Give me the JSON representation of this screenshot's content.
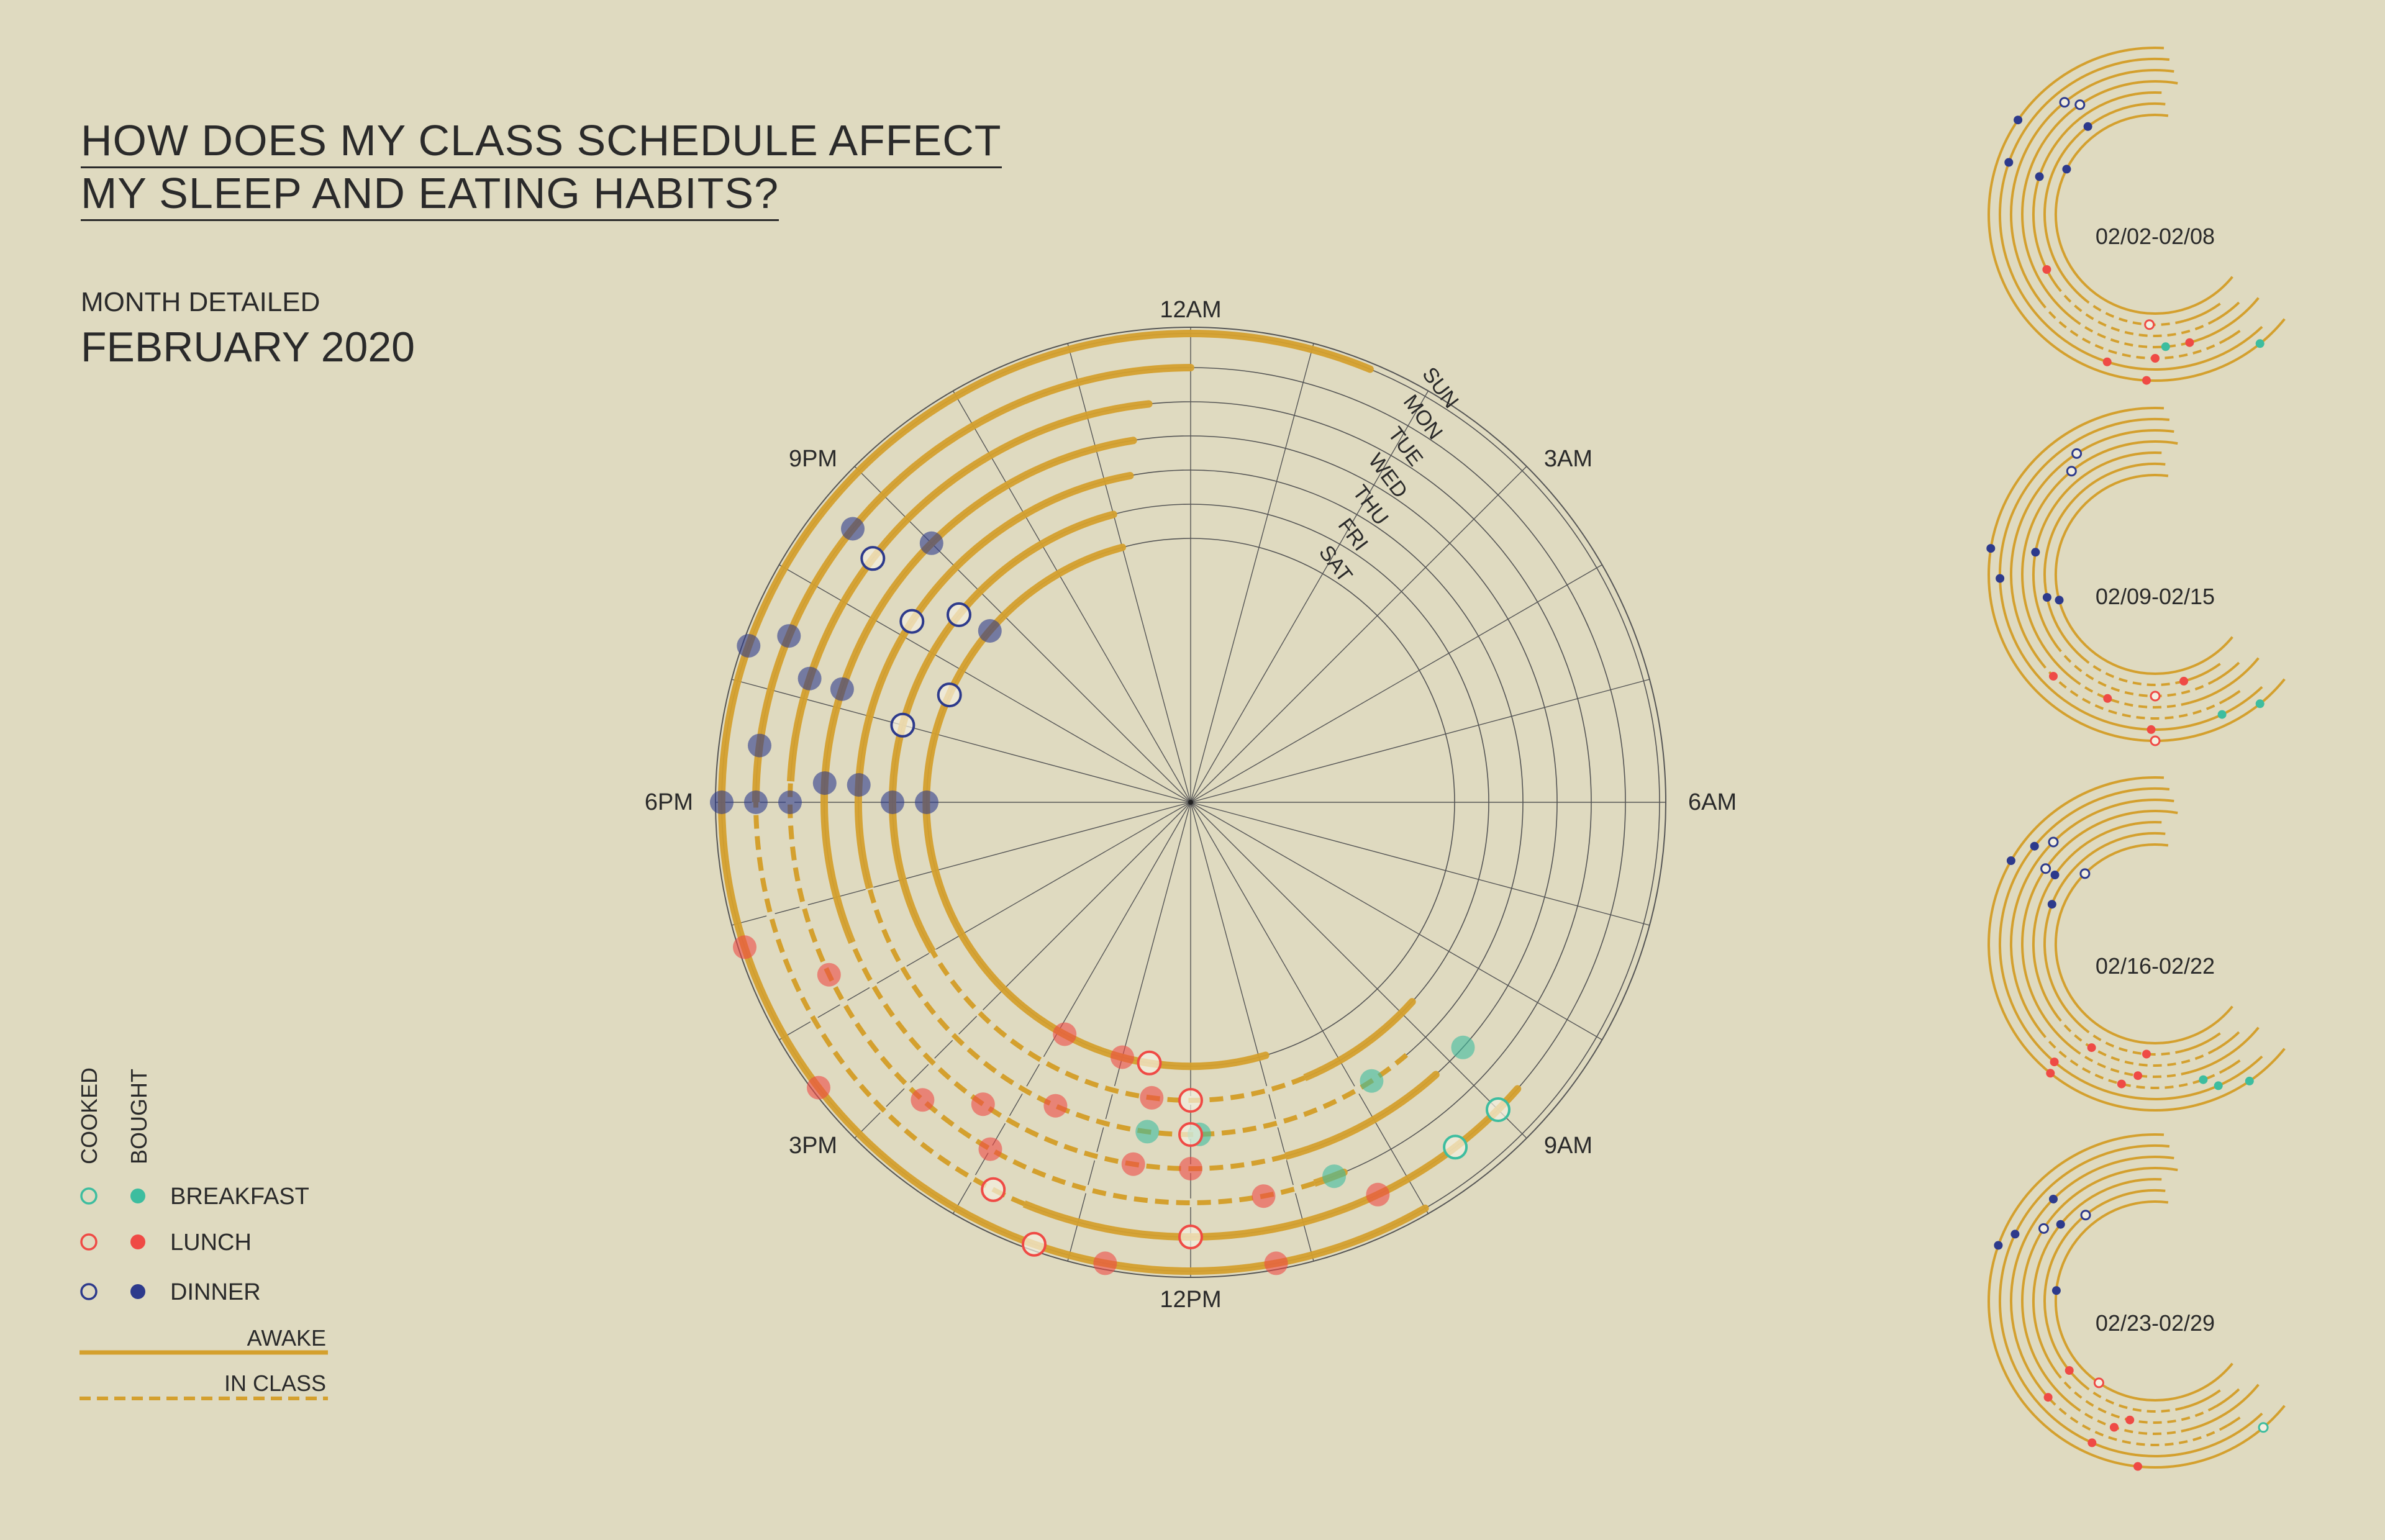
{
  "title": {
    "line1": "HOW DOES MY CLASS SCHEDULE AFFECT",
    "line2": "MY SLEEP AND EATING HABITS?"
  },
  "month": {
    "label": "MONTH DETAILED",
    "value": "FEBRUARY 2020"
  },
  "colors": {
    "background": "#dfdac0",
    "ring": "#d4a02e",
    "grid": "#3a3a3a",
    "breakfast": "#3dbd9f",
    "lunch": "#ef4a45",
    "dinner": "#2d3a8c"
  },
  "legend": {
    "cooked": "COOKED",
    "bought": "BOUGHT",
    "breakfast": "BREAKFAST",
    "lunch": "LUNCH",
    "dinner": "DINNER",
    "awake": "AWAKE",
    "in_class": "IN CLASS"
  },
  "chart_data": {
    "type": "radial",
    "hour_labels": [
      {
        "hour": 0,
        "label": "12AM"
      },
      {
        "hour": 3,
        "label": "3AM"
      },
      {
        "hour": 6,
        "label": "6AM"
      },
      {
        "hour": 9,
        "label": "9AM"
      },
      {
        "hour": 12,
        "label": "12PM"
      },
      {
        "hour": 15,
        "label": "3PM"
      },
      {
        "hour": 18,
        "label": "6PM"
      },
      {
        "hour": 21,
        "label": "9PM"
      }
    ],
    "days": [
      "SUN",
      "MON",
      "TUE",
      "WED",
      "THU",
      "FRI",
      "SAT"
    ],
    "main_week": {
      "awake": [
        {
          "day": "SUN",
          "start": 10.0,
          "end": 1.5
        },
        {
          "day": "MON",
          "start": 8.75,
          "end": 0.0
        },
        {
          "day": "TUE",
          "start": 10.5,
          "end": 23.6
        },
        {
          "day": "WED",
          "start": 9.2,
          "end": 23.4
        },
        {
          "day": "THU",
          "start": 10.2,
          "end": 23.3
        },
        {
          "day": "FRI",
          "start": 8.8,
          "end": 23.0
        },
        {
          "day": "SAT",
          "start": 10.9,
          "end": 23.0
        }
      ],
      "classes": [
        {
          "day": "MON",
          "start": 13.5,
          "end": 18.0
        },
        {
          "day": "TUE",
          "start": 10.8,
          "end": 18.2
        },
        {
          "day": "WED",
          "start": 11.0,
          "end": 16.5
        },
        {
          "day": "THU",
          "start": 9.3,
          "end": 17.0
        },
        {
          "day": "FRI",
          "start": 10.5,
          "end": 16.0
        }
      ],
      "meals": [
        {
          "day": "SUN",
          "hour": 11.3,
          "meal": "lunch",
          "type": "bought"
        },
        {
          "day": "SUN",
          "hour": 12.7,
          "meal": "lunch",
          "type": "bought"
        },
        {
          "day": "SUN",
          "hour": 15.5,
          "meal": "lunch",
          "type": "bought"
        },
        {
          "day": "SUN",
          "hour": 16.8,
          "meal": "lunch",
          "type": "bought"
        },
        {
          "day": "SUN",
          "hour": 18.0,
          "meal": "dinner",
          "type": "bought"
        },
        {
          "day": "SUN",
          "hour": 19.3,
          "meal": "dinner",
          "type": "bought"
        },
        {
          "day": "MON",
          "hour": 9.0,
          "meal": "breakfast",
          "type": "cooked"
        },
        {
          "day": "MON",
          "hour": 12.0,
          "meal": "lunch",
          "type": "cooked"
        },
        {
          "day": "MON",
          "hour": 13.8,
          "meal": "lunch",
          "type": "cooked"
        },
        {
          "day": "MON",
          "hour": 18.0,
          "meal": "dinner",
          "type": "bought"
        },
        {
          "day": "MON",
          "hour": 18.5,
          "meal": "dinner",
          "type": "bought"
        },
        {
          "day": "MON",
          "hour": 19.5,
          "meal": "dinner",
          "type": "bought"
        },
        {
          "day": "MON",
          "hour": 20.6,
          "meal": "dinner",
          "type": "bought"
        },
        {
          "day": "TUE",
          "hour": 10.6,
          "meal": "breakfast",
          "type": "bought"
        },
        {
          "day": "TUE",
          "hour": 11.3,
          "meal": "lunch",
          "type": "bought"
        },
        {
          "day": "TUE",
          "hour": 14.0,
          "meal": "lunch",
          "type": "bought"
        },
        {
          "day": "TUE",
          "hour": 14.8,
          "meal": "lunch",
          "type": "bought"
        },
        {
          "day": "TUE",
          "hour": 16.3,
          "meal": "lunch",
          "type": "bought"
        },
        {
          "day": "TUE",
          "hour": 18.0,
          "meal": "dinner",
          "type": "bought"
        },
        {
          "day": "TUE",
          "hour": 19.2,
          "meal": "dinner",
          "type": "bought"
        },
        {
          "day": "TUE",
          "hour": 20.5,
          "meal": "dinner",
          "type": "cooked"
        },
        {
          "day": "WED",
          "hour": 12.0,
          "meal": "lunch",
          "type": "bought"
        },
        {
          "day": "WED",
          "hour": 12.6,
          "meal": "lunch",
          "type": "bought"
        },
        {
          "day": "WED",
          "hour": 14.3,
          "meal": "lunch",
          "type": "bought"
        },
        {
          "day": "WED",
          "hour": 18.2,
          "meal": "dinner",
          "type": "bought"
        },
        {
          "day": "WED",
          "hour": 19.2,
          "meal": "dinner",
          "type": "bought"
        },
        {
          "day": "WED",
          "hour": 21.0,
          "meal": "dinner",
          "type": "bought"
        },
        {
          "day": "THU",
          "hour": 9.8,
          "meal": "breakfast",
          "type": "bought"
        },
        {
          "day": "THU",
          "hour": 11.9,
          "meal": "breakfast",
          "type": "bought"
        },
        {
          "day": "THU",
          "hour": 12.5,
          "meal": "breakfast",
          "type": "bought"
        },
        {
          "day": "THU",
          "hour": 12.0,
          "meal": "lunch",
          "type": "cooked"
        },
        {
          "day": "THU",
          "hour": 13.6,
          "meal": "lunch",
          "type": "bought"
        },
        {
          "day": "THU",
          "hour": 18.2,
          "meal": "dinner",
          "type": "bought"
        },
        {
          "day": "THU",
          "hour": 20.2,
          "meal": "dinner",
          "type": "cooked"
        },
        {
          "day": "FRI",
          "hour": 12.0,
          "meal": "lunch",
          "type": "cooked"
        },
        {
          "day": "FRI",
          "hour": 12.5,
          "meal": "lunch",
          "type": "bought"
        },
        {
          "day": "FRI",
          "hour": 18.0,
          "meal": "dinner",
          "type": "bought"
        },
        {
          "day": "FRI",
          "hour": 19.0,
          "meal": "dinner",
          "type": "cooked"
        },
        {
          "day": "FRI",
          "hour": 20.6,
          "meal": "dinner",
          "type": "cooked"
        },
        {
          "day": "SAT",
          "hour": 12.6,
          "meal": "lunch",
          "type": "cooked"
        },
        {
          "day": "SAT",
          "hour": 13.0,
          "meal": "lunch",
          "type": "bought"
        },
        {
          "day": "SAT",
          "hour": 13.9,
          "meal": "lunch",
          "type": "bought"
        },
        {
          "day": "SAT",
          "hour": 18.0,
          "meal": "dinner",
          "type": "bought"
        },
        {
          "day": "SAT",
          "hour": 19.6,
          "meal": "dinner",
          "type": "cooked"
        },
        {
          "day": "SAT",
          "hour": 20.7,
          "meal": "dinner",
          "type": "bought"
        },
        {
          "day": "MON",
          "hour": 9.5,
          "meal": "breakfast",
          "type": "cooked"
        },
        {
          "day": "WED",
          "hour": 8.8,
          "meal": "breakfast",
          "type": "bought"
        },
        {
          "day": "SUN",
          "hour": 13.3,
          "meal": "lunch",
          "type": "cooked"
        },
        {
          "day": "MON",
          "hour": 10.3,
          "meal": "lunch",
          "type": "bought"
        }
      ]
    },
    "weekly_minis": [
      {
        "label": "02/02-02/08",
        "meals": [
          {
            "day": "SUN",
            "hour": 20.3,
            "meal": "dinner",
            "type": "bought"
          },
          {
            "day": "MON",
            "hour": 19.3,
            "meal": "dinner",
            "type": "bought"
          },
          {
            "day": "TUE",
            "hour": 21.4,
            "meal": "dinner",
            "type": "cooked"
          },
          {
            "day": "WED",
            "hour": 21.7,
            "meal": "dinner",
            "type": "cooked"
          },
          {
            "day": "THU",
            "hour": 19.2,
            "meal": "dinner",
            "type": "bought"
          },
          {
            "day": "FRI",
            "hour": 21.5,
            "meal": "dinner",
            "type": "bought"
          },
          {
            "day": "SAT",
            "hour": 19.8,
            "meal": "dinner",
            "type": "bought"
          },
          {
            "day": "SUN",
            "hour": 12.2,
            "meal": "lunch",
            "type": "bought"
          },
          {
            "day": "MON",
            "hour": 13.2,
            "meal": "lunch",
            "type": "bought"
          },
          {
            "day": "TUE",
            "hour": 12.0,
            "meal": "lunch",
            "type": "bought"
          },
          {
            "day": "WED",
            "hour": 11.0,
            "meal": "lunch",
            "type": "bought"
          },
          {
            "day": "THU",
            "hour": 16.2,
            "meal": "lunch",
            "type": "bought"
          },
          {
            "day": "FRI",
            "hour": 12.2,
            "meal": "lunch",
            "type": "cooked"
          },
          {
            "day": "SUN",
            "hour": 9.4,
            "meal": "breakfast",
            "type": "bought"
          },
          {
            "day": "WED",
            "hour": 11.7,
            "meal": "breakfast",
            "type": "bought"
          }
        ]
      },
      {
        "label": "02/09-02/15",
        "meals": [
          {
            "day": "SUN",
            "hour": 18.6,
            "meal": "dinner",
            "type": "bought"
          },
          {
            "day": "MON",
            "hour": 17.9,
            "meal": "dinner",
            "type": "bought"
          },
          {
            "day": "TUE",
            "hour": 21.8,
            "meal": "dinner",
            "type": "cooked"
          },
          {
            "day": "WED",
            "hour": 21.4,
            "meal": "dinner",
            "type": "cooked"
          },
          {
            "day": "THU",
            "hour": 18.7,
            "meal": "dinner",
            "type": "bought"
          },
          {
            "day": "FRI",
            "hour": 17.2,
            "meal": "dinner",
            "type": "bought"
          },
          {
            "day": "SAT",
            "hour": 17.0,
            "meal": "dinner",
            "type": "bought"
          },
          {
            "day": "SUN",
            "hour": 12.0,
            "meal": "lunch",
            "type": "cooked"
          },
          {
            "day": "MON",
            "hour": 12.1,
            "meal": "lunch",
            "type": "bought"
          },
          {
            "day": "TUE",
            "hour": 15.0,
            "meal": "lunch",
            "type": "bought"
          },
          {
            "day": "WED",
            "hour": 13.4,
            "meal": "lunch",
            "type": "bought"
          },
          {
            "day": "THU",
            "hour": 12.0,
            "meal": "lunch",
            "type": "cooked"
          },
          {
            "day": "FRI",
            "hour": 11.0,
            "meal": "lunch",
            "type": "bought"
          },
          {
            "day": "SUN",
            "hour": 9.4,
            "meal": "breakfast",
            "type": "bought"
          },
          {
            "day": "MON",
            "hour": 10.3,
            "meal": "breakfast",
            "type": "bought"
          }
        ]
      },
      {
        "label": "02/16-02/22",
        "meals": [
          {
            "day": "SUN",
            "hour": 20.0,
            "meal": "dinner",
            "type": "bought"
          },
          {
            "day": "MON",
            "hour": 20.6,
            "meal": "dinner",
            "type": "bought"
          },
          {
            "day": "TUE",
            "hour": 21.0,
            "meal": "dinner",
            "type": "cooked"
          },
          {
            "day": "WED",
            "hour": 20.3,
            "meal": "dinner",
            "type": "cooked"
          },
          {
            "day": "THU",
            "hour": 20.3,
            "meal": "dinner",
            "type": "bought"
          },
          {
            "day": "FRI",
            "hour": 19.4,
            "meal": "dinner",
            "type": "bought"
          },
          {
            "day": "SAT",
            "hour": 21.0,
            "meal": "dinner",
            "type": "cooked"
          },
          {
            "day": "SUN",
            "hour": 14.6,
            "meal": "lunch",
            "type": "bought"
          },
          {
            "day": "MON",
            "hour": 14.7,
            "meal": "lunch",
            "type": "bought"
          },
          {
            "day": "TUE",
            "hour": 12.9,
            "meal": "lunch",
            "type": "bought"
          },
          {
            "day": "WED",
            "hour": 12.5,
            "meal": "lunch",
            "type": "bought"
          },
          {
            "day": "THU",
            "hour": 14.1,
            "meal": "lunch",
            "type": "bought"
          },
          {
            "day": "FRI",
            "hour": 12.3,
            "meal": "lunch",
            "type": "bought"
          },
          {
            "day": "SUN",
            "hour": 9.7,
            "meal": "breakfast",
            "type": "bought"
          },
          {
            "day": "MON",
            "hour": 10.4,
            "meal": "breakfast",
            "type": "bought"
          },
          {
            "day": "TUE",
            "hour": 10.7,
            "meal": "breakfast",
            "type": "bought"
          }
        ]
      },
      {
        "label": "02/23-02/29",
        "meals": [
          {
            "day": "SUN",
            "hour": 19.3,
            "meal": "dinner",
            "type": "bought"
          },
          {
            "day": "MON",
            "hour": 19.7,
            "meal": "dinner",
            "type": "bought"
          },
          {
            "day": "TUE",
            "hour": 21.0,
            "meal": "dinner",
            "type": "bought"
          },
          {
            "day": "WED",
            "hour": 20.2,
            "meal": "dinner",
            "type": "cooked"
          },
          {
            "day": "THU",
            "hour": 20.6,
            "meal": "dinner",
            "type": "bought"
          },
          {
            "day": "FRI",
            "hour": 21.4,
            "meal": "dinner",
            "type": "cooked"
          },
          {
            "day": "SAT",
            "hour": 18.4,
            "meal": "dinner",
            "type": "bought"
          },
          {
            "day": "SUN",
            "hour": 12.4,
            "meal": "lunch",
            "type": "bought"
          },
          {
            "day": "MON",
            "hour": 13.6,
            "meal": "lunch",
            "type": "bought"
          },
          {
            "day": "TUE",
            "hour": 15.2,
            "meal": "lunch",
            "type": "bought"
          },
          {
            "day": "WED",
            "hour": 13.2,
            "meal": "lunch",
            "type": "bought"
          },
          {
            "day": "THU",
            "hour": 12.8,
            "meal": "lunch",
            "type": "bought"
          },
          {
            "day": "FRI",
            "hour": 15.4,
            "meal": "lunch",
            "type": "bought"
          },
          {
            "day": "SAT",
            "hour": 14.3,
            "meal": "lunch",
            "type": "cooked"
          },
          {
            "day": "SUN",
            "hour": 9.3,
            "meal": "breakfast",
            "type": "cooked"
          }
        ]
      }
    ]
  }
}
